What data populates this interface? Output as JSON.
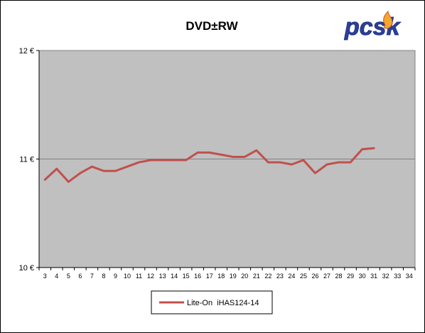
{
  "chart_data": {
    "type": "line",
    "title": "DVD±RW",
    "xlabel": "",
    "ylabel": "",
    "categories": [
      "3",
      "4",
      "5",
      "6",
      "7",
      "8",
      "9",
      "10",
      "11",
      "12",
      "13",
      "14",
      "15",
      "16",
      "17",
      "18",
      "19",
      "20",
      "21",
      "22",
      "23",
      "24",
      "25",
      "26",
      "27",
      "28",
      "29",
      "30",
      "31",
      "32",
      "33",
      "34"
    ],
    "ylim": [
      10,
      12
    ],
    "yticks": [
      "10 €",
      "11 €",
      "12 €"
    ],
    "grid": "horizontal",
    "legend_position": "bottom",
    "series": [
      {
        "name": "Lite-On  iHAS124-14",
        "color": "#C0504D",
        "values": [
          10.81,
          10.91,
          10.79,
          10.87,
          10.93,
          10.89,
          10.89,
          10.93,
          10.97,
          10.99,
          10.99,
          10.99,
          10.99,
          11.06,
          11.06,
          11.04,
          11.02,
          11.02,
          11.08,
          10.97,
          10.97,
          10.95,
          10.99,
          10.87,
          10.95,
          10.97,
          10.97,
          11.09,
          11.1,
          null,
          null,
          null
        ]
      }
    ],
    "plot_background": "#C0C0C0",
    "grid_color": "#808080"
  },
  "logo": {
    "text": "pcsk",
    "color": "#2B3F9E",
    "flame_color": "#F2A72E"
  }
}
